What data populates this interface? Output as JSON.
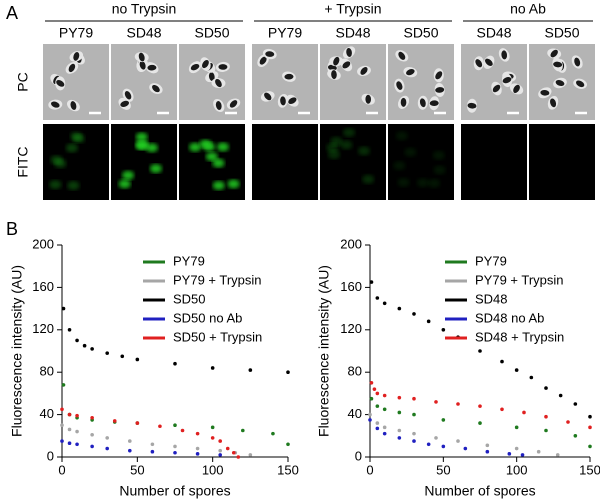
{
  "panel_a": {
    "label": "A",
    "rows": [
      "PC",
      "FITC"
    ],
    "groups": [
      {
        "title": "no Trypsin",
        "strains": [
          "PY79",
          "SD48",
          "SD50"
        ]
      },
      {
        "title": "+ Trypsin",
        "strains": [
          "PY79",
          "SD48",
          "SD50"
        ]
      },
      {
        "title": "no Ab",
        "strains": [
          "SD48",
          "SD50"
        ]
      }
    ]
  },
  "panel_b": {
    "label": "B"
  },
  "chart_data": [
    {
      "type": "scatter",
      "xlabel": "Number of spores",
      "ylabel": "Fluorescence intensity (AU)",
      "xlim": [
        0,
        150
      ],
      "ylim": [
        0,
        200
      ],
      "xticks": [
        0,
        50,
        100,
        150
      ],
      "yticks": [
        0,
        40,
        80,
        120,
        160,
        200
      ],
      "legend": "upper-right",
      "series": [
        {
          "name": "PY79",
          "color": "#1f7a1f",
          "x": [
            1,
            5,
            10,
            20,
            35,
            50,
            75,
            100,
            120,
            140,
            150
          ],
          "values": [
            68,
            40,
            37,
            35,
            33,
            32,
            30,
            28,
            25,
            22,
            12
          ]
        },
        {
          "name": "PY79 + Trypsin",
          "color": "#a6a6a6",
          "x": [
            0,
            5,
            10,
            20,
            30,
            45,
            60,
            75,
            90,
            105,
            115,
            125
          ],
          "values": [
            30,
            26,
            24,
            21,
            18,
            15,
            12,
            10,
            8,
            6,
            4,
            2
          ]
        },
        {
          "name": "SD50",
          "color": "#000000",
          "x": [
            1,
            5,
            10,
            15,
            20,
            30,
            40,
            50,
            75,
            100,
            125,
            150
          ],
          "values": [
            140,
            120,
            110,
            105,
            102,
            98,
            95,
            92,
            88,
            84,
            82,
            80
          ]
        },
        {
          "name": "SD50 no Ab",
          "color": "#2020c0",
          "x": [
            0,
            5,
            10,
            20,
            30,
            45,
            60,
            75,
            90,
            105
          ],
          "values": [
            15,
            13,
            12,
            10,
            8,
            6,
            5,
            4,
            3,
            2
          ]
        },
        {
          "name": "SD50 + Trypsin",
          "color": "#e02020",
          "x": [
            0,
            5,
            10,
            20,
            35,
            50,
            65,
            80,
            90,
            100,
            105,
            110,
            114,
            117
          ],
          "values": [
            45,
            40,
            39,
            37,
            34,
            32,
            29,
            25,
            22,
            18,
            15,
            8,
            4,
            0
          ]
        }
      ]
    },
    {
      "type": "scatter",
      "xlabel": "Number of spores",
      "ylabel": "Fluorescence intensity (AU)",
      "xlim": [
        0,
        150
      ],
      "ylim": [
        0,
        200
      ],
      "xticks": [
        0,
        50,
        100,
        150
      ],
      "yticks": [
        0,
        40,
        80,
        120,
        160,
        200
      ],
      "legend": "upper-right",
      "series": [
        {
          "name": "PY79",
          "color": "#1f7a1f",
          "x": [
            1,
            5,
            10,
            20,
            30,
            50,
            75,
            100,
            120,
            140,
            150
          ],
          "values": [
            55,
            48,
            45,
            42,
            40,
            35,
            32,
            28,
            25,
            20,
            10
          ]
        },
        {
          "name": "PY79 + Trypsin",
          "color": "#a6a6a6",
          "x": [
            0,
            5,
            10,
            20,
            30,
            45,
            60,
            80,
            100,
            115,
            128
          ],
          "values": [
            40,
            32,
            28,
            25,
            22,
            18,
            15,
            11,
            8,
            5,
            2
          ]
        },
        {
          "name": "SD48",
          "color": "#000000",
          "x": [
            1,
            5,
            10,
            20,
            30,
            40,
            50,
            60,
            75,
            90,
            100,
            110,
            120,
            130,
            140,
            150
          ],
          "values": [
            165,
            150,
            145,
            140,
            135,
            128,
            120,
            113,
            100,
            90,
            82,
            75,
            65,
            58,
            50,
            38
          ]
        },
        {
          "name": "SD48 no Ab",
          "color": "#2020c0",
          "x": [
            0,
            5,
            10,
            20,
            30,
            40,
            50,
            65,
            80,
            95,
            104
          ],
          "values": [
            35,
            27,
            22,
            18,
            15,
            12,
            10,
            8,
            5,
            3,
            2
          ]
        },
        {
          "name": "SD48 + Trypsin",
          "color": "#e02020",
          "x": [
            1,
            3,
            5,
            10,
            20,
            30,
            45,
            60,
            75,
            90,
            105,
            120,
            135,
            150
          ],
          "values": [
            70,
            64,
            60,
            58,
            56,
            55,
            52,
            50,
            48,
            45,
            42,
            38,
            33,
            28
          ]
        }
      ]
    }
  ]
}
